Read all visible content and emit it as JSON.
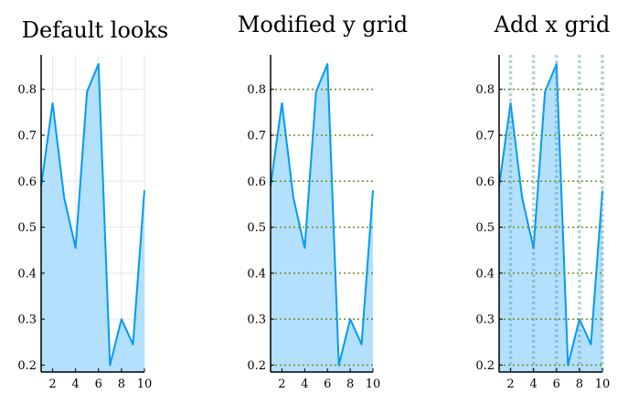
{
  "chart_data": [
    {
      "type": "area",
      "title": "Default looks",
      "x": [
        1,
        2,
        3,
        4,
        5,
        6,
        7,
        8,
        9,
        10
      ],
      "series": [
        {
          "values": [
            0.59,
            0.77,
            0.565,
            0.455,
            0.795,
            0.855,
            0.2,
            0.3,
            0.245,
            0.58
          ]
        }
      ],
      "xticks": [
        "2",
        "4",
        "6",
        "8",
        "10"
      ],
      "yticks": [
        "0.2",
        "0.3",
        "0.4",
        "0.5",
        "0.6",
        "0.7",
        "0.8"
      ],
      "xlim": [
        1,
        10
      ],
      "ylim": [
        0.185,
        0.875
      ],
      "grid": {
        "x": "light solid",
        "y": "light solid"
      },
      "legend": "none",
      "colors": {
        "line": "#009af9",
        "fill": "#b3e0fd",
        "grid": "#e6e6e6"
      }
    },
    {
      "type": "area",
      "title": "Modified y grid",
      "x": [
        1,
        2,
        3,
        4,
        5,
        6,
        7,
        8,
        9,
        10
      ],
      "series": [
        {
          "values": [
            0.59,
            0.77,
            0.565,
            0.455,
            0.795,
            0.855,
            0.2,
            0.3,
            0.245,
            0.58
          ]
        }
      ],
      "xticks": [
        "2",
        "4",
        "6",
        "8",
        "10"
      ],
      "yticks": [
        "0.2",
        "0.3",
        "0.4",
        "0.5",
        "0.6",
        "0.7",
        "0.8"
      ],
      "xlim": [
        1,
        10
      ],
      "ylim": [
        0.185,
        0.875
      ],
      "grid": {
        "x": "off",
        "y": "dotted olive, drawn above series"
      },
      "legend": "none",
      "colors": {
        "line": "#009af9",
        "fill": "#b3e0fd",
        "ygrid": "#6b8e23"
      }
    },
    {
      "type": "area",
      "title": "Add x grid",
      "x": [
        1,
        2,
        3,
        4,
        5,
        6,
        7,
        8,
        9,
        10
      ],
      "series": [
        {
          "values": [
            0.59,
            0.77,
            0.565,
            0.455,
            0.795,
            0.855,
            0.2,
            0.3,
            0.245,
            0.58
          ]
        }
      ],
      "xticks": [
        "2",
        "4",
        "6",
        "8",
        "10"
      ],
      "yticks": [
        "0.2",
        "0.3",
        "0.4",
        "0.5",
        "0.6",
        "0.7",
        "0.8"
      ],
      "xlim": [
        1,
        10
      ],
      "ylim": [
        0.185,
        0.875
      ],
      "grid": {
        "x": "thick dotted cadet blue, drawn above series",
        "y": "dotted olive, drawn above series"
      },
      "legend": "none",
      "colors": {
        "line": "#009af9",
        "fill": "#b3e0fd",
        "ygrid": "#6b8e23",
        "xgrid": "#5f9ea0"
      }
    }
  ]
}
